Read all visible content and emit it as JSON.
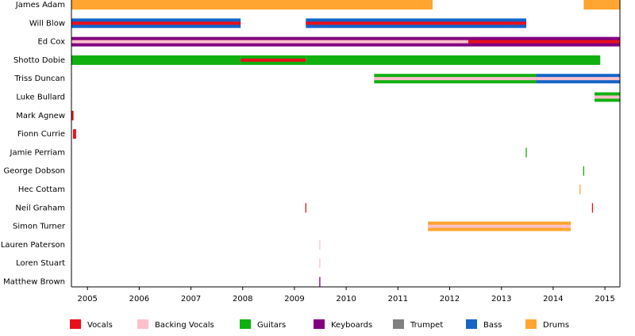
{
  "chart_data": {
    "type": "timeline",
    "xlim": [
      2004.69,
      2015.29
    ],
    "xticks": [
      2005,
      2006,
      2007,
      2008,
      2009,
      2010,
      2011,
      2012,
      2013,
      2014,
      2015
    ],
    "roles": [
      {
        "name": "Vocals",
        "color": "#e8101c"
      },
      {
        "name": "Backing Vocals",
        "color": "#ffc0cb"
      },
      {
        "name": "Guitars",
        "color": "#10b010"
      },
      {
        "name": "Keyboards",
        "color": "#800080"
      },
      {
        "name": "Trumpet",
        "color": "#808080"
      },
      {
        "name": "Bass",
        "color": "#1565c8"
      },
      {
        "name": "Drums",
        "color": "#ffa530"
      }
    ],
    "members": [
      {
        "name": "James Adam",
        "segments": [
          {
            "start": 2004.69,
            "end": 2011.67,
            "roles": [
              "Drums"
            ]
          },
          {
            "start": 2014.59,
            "end": 2015.29,
            "roles": [
              "Drums"
            ]
          }
        ]
      },
      {
        "name": "Will Blow",
        "segments": [
          {
            "start": 2004.69,
            "end": 2007.96,
            "roles": [
              "Bass",
              "Vocals"
            ]
          },
          {
            "start": 2009.22,
            "end": 2013.48,
            "roles": [
              "Bass",
              "Vocals"
            ]
          }
        ]
      },
      {
        "name": "Ed Cox",
        "segments": [
          {
            "start": 2004.69,
            "end": 2012.36,
            "roles": [
              "Keyboards",
              "Backing Vocals"
            ]
          },
          {
            "start": 2012.36,
            "end": 2015.29,
            "roles": [
              "Keyboards",
              "Vocals"
            ]
          }
        ]
      },
      {
        "name": "Shotto Dobie",
        "segments": [
          {
            "start": 2004.69,
            "end": 2007.96,
            "roles": [
              "Guitars"
            ]
          },
          {
            "start": 2007.96,
            "end": 2009.22,
            "roles": [
              "Guitars",
              "Vocals"
            ]
          },
          {
            "start": 2009.22,
            "end": 2014.91,
            "roles": [
              "Guitars"
            ]
          }
        ]
      },
      {
        "name": "Triss Duncan",
        "segments": [
          {
            "start": 2010.54,
            "end": 2013.67,
            "roles": [
              "Guitars",
              "Backing Vocals"
            ]
          },
          {
            "start": 2013.67,
            "end": 2015.29,
            "roles": [
              "Bass",
              "Backing Vocals"
            ]
          }
        ]
      },
      {
        "name": "Luke Bullard",
        "segments": [
          {
            "start": 2014.8,
            "end": 2015.29,
            "roles": [
              "Guitars",
              "Backing Vocals"
            ]
          }
        ]
      },
      {
        "name": "Mark Agnew",
        "segments": [
          {
            "start": 2004.69,
            "end": 2004.73,
            "roles": [
              "Vocals"
            ]
          }
        ]
      },
      {
        "name": "Fionn Currie",
        "segments": [
          {
            "start": 2004.72,
            "end": 2004.78,
            "roles": [
              "Vocals"
            ]
          }
        ]
      },
      {
        "name": "Jamie Perriam",
        "segments": [
          {
            "start": 2013.47,
            "end": 2013.49,
            "roles": [
              "Guitars"
            ]
          }
        ]
      },
      {
        "name": "George Dobson",
        "segments": [
          {
            "start": 2014.58,
            "end": 2014.6,
            "roles": [
              "Guitars"
            ]
          }
        ]
      },
      {
        "name": "Hec Cottam",
        "segments": [
          {
            "start": 2014.51,
            "end": 2014.53,
            "roles": [
              "Drums"
            ]
          }
        ]
      },
      {
        "name": "Neil Graham",
        "segments": [
          {
            "start": 2009.21,
            "end": 2009.23,
            "roles": [
              "Vocals"
            ]
          },
          {
            "start": 2014.75,
            "end": 2014.77,
            "roles": [
              "Vocals"
            ]
          }
        ]
      },
      {
        "name": "Simon Turner",
        "segments": [
          {
            "start": 2011.58,
            "end": 2014.34,
            "roles": [
              "Drums",
              "Backing Vocals"
            ]
          }
        ]
      },
      {
        "name": "Lauren Paterson",
        "segments": [
          {
            "start": 2009.48,
            "end": 2009.5,
            "roles": [
              "Backing Vocals"
            ]
          }
        ]
      },
      {
        "name": "Loren Stuart",
        "segments": [
          {
            "start": 2009.48,
            "end": 2009.5,
            "roles": [
              "Backing Vocals"
            ]
          }
        ]
      },
      {
        "name": "Matthew Brown",
        "segments": [
          {
            "start": 2009.48,
            "end": 2009.5,
            "roles": [
              "Keyboards"
            ]
          }
        ]
      }
    ]
  }
}
